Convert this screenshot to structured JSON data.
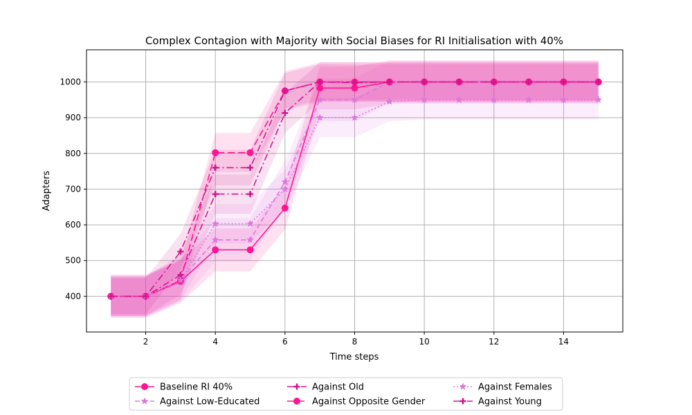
{
  "chart_data": {
    "type": "line",
    "title": "Complex Contagion with Majority with Social Biases for RI Initialisation with 40%",
    "xlabel": "Time steps",
    "ylabel": "Adapters",
    "xlim": [
      0.3,
      15.7
    ],
    "ylim": [
      300,
      1090
    ],
    "xticks": [
      2,
      4,
      6,
      8,
      10,
      12,
      14
    ],
    "yticks": [
      400,
      500,
      600,
      700,
      800,
      900,
      1000
    ],
    "grid": true,
    "legend_location": "bottom-center",
    "x": [
      1,
      2,
      3,
      4,
      5,
      6,
      7,
      8,
      9,
      10,
      11,
      12,
      13,
      14,
      15
    ],
    "series": [
      {
        "name": "Baseline RI 40%",
        "color": "#ff1493",
        "dash": "",
        "marker": "circle",
        "values": [
          400,
          400,
          442,
          530,
          530,
          647,
          983,
          983,
          1000,
          1000,
          1000,
          1000,
          1000,
          1000,
          1000
        ],
        "band": 60
      },
      {
        "name": "Against Low-Educated",
        "color": "#dd77dd",
        "dash": "7,4",
        "marker": "star",
        "values": [
          400,
          400,
          445,
          558,
          558,
          720,
          950,
          950,
          1000,
          1000,
          1000,
          1000,
          1000,
          1000,
          1000
        ],
        "band": 60
      },
      {
        "name": "Against Old",
        "color": "#d0158f",
        "dash": "10,4,2,4",
        "marker": "plus",
        "values": [
          400,
          400,
          460,
          686,
          686,
          913,
          1000,
          1000,
          1000,
          1000,
          1000,
          1000,
          1000,
          1000,
          1000
        ],
        "band": 55
      },
      {
        "name": "Against Opposite Gender",
        "color": "#ff1493",
        "dash": "10,5",
        "marker": "circle",
        "values": [
          400,
          400,
          445,
          802,
          802,
          975,
          1000,
          1000,
          1000,
          1000,
          1000,
          1000,
          1000,
          1000,
          1000
        ],
        "band": 55
      },
      {
        "name": "Against Females",
        "color": "#dd77dd",
        "dash": "2,3",
        "marker": "star",
        "values": [
          400,
          400,
          445,
          603,
          603,
          700,
          900,
          900,
          945,
          950,
          950,
          950,
          950,
          950,
          950
        ],
        "band": 55
      },
      {
        "name": "Against Young",
        "color": "#d0158f",
        "dash": "10,4,2,4",
        "marker": "plus",
        "values": [
          400,
          400,
          525,
          760,
          760,
          975,
          1000,
          998,
          1000,
          1000,
          1000,
          1000,
          1000,
          1000,
          1000
        ],
        "band": 50
      }
    ]
  }
}
